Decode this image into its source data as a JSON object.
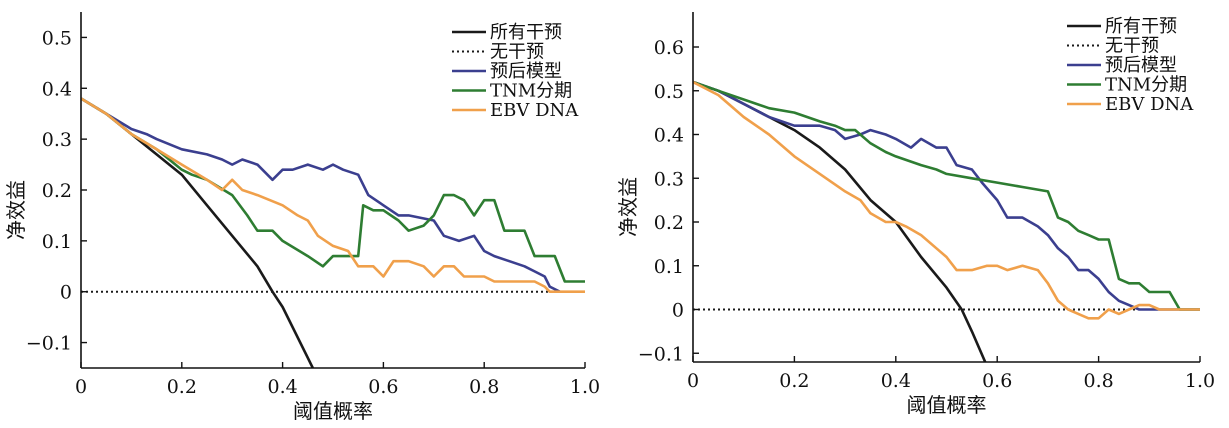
{
  "chart_data": [
    {
      "type": "line",
      "title": "",
      "xlabel": "阈值概率",
      "ylabel": "净效益",
      "xlim": [
        0,
        1.0
      ],
      "ylim": [
        -0.15,
        0.55
      ],
      "xticks": [
        0,
        0.2,
        0.4,
        0.6,
        0.8,
        1.0
      ],
      "xtick_labels": [
        "0",
        "0.2",
        "0.4",
        "0.6",
        "0.8",
        "1.0"
      ],
      "yticks": [
        -0.1,
        0,
        0.1,
        0.2,
        0.3,
        0.4,
        0.5
      ],
      "ytick_labels": [
        "−0.1",
        "0",
        "0.1",
        "0.2",
        "0.3",
        "0.4",
        "0.5"
      ],
      "grid": false,
      "legend_position": "top-right",
      "series": [
        {
          "name": "所有干预",
          "color": "#1a1a1a",
          "style": "solid",
          "x": [
            0,
            0.05,
            0.1,
            0.15,
            0.2,
            0.25,
            0.3,
            0.35,
            0.38,
            0.4,
            0.45,
            0.46
          ],
          "y": [
            0.38,
            0.35,
            0.31,
            0.27,
            0.23,
            0.17,
            0.11,
            0.05,
            0.0,
            -0.03,
            -0.13,
            -0.15
          ]
        },
        {
          "name": "无干预",
          "color": "#1a1a1a",
          "style": "dotted",
          "x": [
            0,
            1.0
          ],
          "y": [
            0,
            0
          ]
        },
        {
          "name": "预后模型",
          "color": "#3b3f8f",
          "style": "solid",
          "x": [
            0,
            0.05,
            0.1,
            0.13,
            0.15,
            0.2,
            0.25,
            0.28,
            0.3,
            0.32,
            0.35,
            0.38,
            0.4,
            0.42,
            0.45,
            0.48,
            0.5,
            0.52,
            0.55,
            0.57,
            0.6,
            0.63,
            0.65,
            0.7,
            0.72,
            0.75,
            0.78,
            0.8,
            0.82,
            0.85,
            0.88,
            0.9,
            0.92,
            0.93,
            0.95
          ],
          "y": [
            0.38,
            0.35,
            0.32,
            0.31,
            0.3,
            0.28,
            0.27,
            0.26,
            0.25,
            0.26,
            0.25,
            0.22,
            0.24,
            0.24,
            0.25,
            0.24,
            0.25,
            0.24,
            0.23,
            0.19,
            0.17,
            0.15,
            0.15,
            0.14,
            0.11,
            0.1,
            0.11,
            0.08,
            0.07,
            0.06,
            0.05,
            0.04,
            0.03,
            0.01,
            0.0
          ]
        },
        {
          "name": "TNM分期",
          "color": "#2e7d32",
          "style": "solid",
          "x": [
            0,
            0.05,
            0.1,
            0.15,
            0.2,
            0.22,
            0.25,
            0.3,
            0.33,
            0.35,
            0.38,
            0.4,
            0.45,
            0.48,
            0.5,
            0.52,
            0.55,
            0.56,
            0.58,
            0.6,
            0.63,
            0.65,
            0.68,
            0.7,
            0.72,
            0.74,
            0.76,
            0.78,
            0.8,
            0.82,
            0.84,
            0.86,
            0.88,
            0.9,
            0.92,
            0.94,
            0.96,
            0.98,
            1.0
          ],
          "y": [
            0.38,
            0.35,
            0.31,
            0.28,
            0.24,
            0.23,
            0.22,
            0.19,
            0.15,
            0.12,
            0.12,
            0.1,
            0.07,
            0.05,
            0.07,
            0.07,
            0.07,
            0.17,
            0.16,
            0.16,
            0.14,
            0.12,
            0.13,
            0.15,
            0.19,
            0.19,
            0.18,
            0.15,
            0.18,
            0.18,
            0.12,
            0.12,
            0.12,
            0.07,
            0.07,
            0.07,
            0.02,
            0.02,
            0.02
          ]
        },
        {
          "name": "EBV DNA",
          "color": "#f0a04b",
          "style": "solid",
          "x": [
            0,
            0.05,
            0.1,
            0.15,
            0.2,
            0.25,
            0.28,
            0.3,
            0.32,
            0.35,
            0.4,
            0.43,
            0.45,
            0.47,
            0.5,
            0.53,
            0.55,
            0.58,
            0.6,
            0.62,
            0.65,
            0.68,
            0.7,
            0.72,
            0.74,
            0.76,
            0.78,
            0.8,
            0.82,
            0.85,
            0.88,
            0.9,
            0.92,
            0.93,
            0.95,
            1.0
          ],
          "y": [
            0.38,
            0.35,
            0.31,
            0.28,
            0.25,
            0.22,
            0.2,
            0.22,
            0.2,
            0.19,
            0.17,
            0.15,
            0.14,
            0.11,
            0.09,
            0.08,
            0.05,
            0.05,
            0.03,
            0.06,
            0.06,
            0.05,
            0.03,
            0.05,
            0.05,
            0.03,
            0.03,
            0.03,
            0.02,
            0.02,
            0.02,
            0.02,
            0.01,
            0.0,
            0.0,
            0.0
          ]
        }
      ]
    },
    {
      "type": "line",
      "title": "",
      "xlabel": "阈值概率",
      "ylabel": "净效益",
      "xlim": [
        0,
        1.0
      ],
      "ylim": [
        -0.12,
        0.68
      ],
      "xticks": [
        0,
        0.2,
        0.4,
        0.6,
        0.8,
        1.0
      ],
      "xtick_labels": [
        "0",
        "0.2",
        "0.4",
        "0.6",
        "0.8",
        "1.0"
      ],
      "yticks": [
        -0.1,
        0,
        0.1,
        0.2,
        0.3,
        0.4,
        0.5,
        0.6
      ],
      "ytick_labels": [
        "−0.1",
        "0",
        "0.1",
        "0.2",
        "0.3",
        "0.4",
        "0.5",
        "0.6"
      ],
      "grid": false,
      "legend_position": "top-right",
      "series": [
        {
          "name": "所有干预",
          "color": "#1a1a1a",
          "style": "solid",
          "x": [
            0,
            0.05,
            0.1,
            0.15,
            0.2,
            0.25,
            0.3,
            0.35,
            0.4,
            0.45,
            0.5,
            0.53,
            0.55,
            0.58
          ],
          "y": [
            0.52,
            0.5,
            0.47,
            0.44,
            0.41,
            0.37,
            0.32,
            0.25,
            0.2,
            0.12,
            0.05,
            0.0,
            -0.05,
            -0.13
          ]
        },
        {
          "name": "无干预",
          "color": "#1a1a1a",
          "style": "dotted",
          "x": [
            0,
            1.0
          ],
          "y": [
            0,
            0
          ]
        },
        {
          "name": "预后模型",
          "color": "#3b3f8f",
          "style": "solid",
          "x": [
            0,
            0.05,
            0.1,
            0.15,
            0.2,
            0.25,
            0.28,
            0.3,
            0.33,
            0.35,
            0.38,
            0.4,
            0.43,
            0.45,
            0.48,
            0.5,
            0.52,
            0.55,
            0.57,
            0.6,
            0.62,
            0.65,
            0.68,
            0.7,
            0.72,
            0.74,
            0.76,
            0.78,
            0.8,
            0.82,
            0.84,
            0.86,
            0.88,
            0.9,
            0.92,
            0.95,
            1.0
          ],
          "y": [
            0.52,
            0.5,
            0.47,
            0.44,
            0.42,
            0.42,
            0.41,
            0.39,
            0.4,
            0.41,
            0.4,
            0.39,
            0.37,
            0.39,
            0.37,
            0.37,
            0.33,
            0.32,
            0.29,
            0.25,
            0.21,
            0.21,
            0.19,
            0.17,
            0.14,
            0.12,
            0.09,
            0.09,
            0.07,
            0.04,
            0.02,
            0.01,
            0.0,
            0.0,
            0.0,
            0.0,
            0.0
          ]
        },
        {
          "name": "TNM分期",
          "color": "#2e7d32",
          "style": "solid",
          "x": [
            0,
            0.05,
            0.1,
            0.15,
            0.2,
            0.25,
            0.28,
            0.3,
            0.32,
            0.35,
            0.38,
            0.4,
            0.45,
            0.48,
            0.5,
            0.55,
            0.6,
            0.65,
            0.7,
            0.72,
            0.74,
            0.76,
            0.78,
            0.8,
            0.82,
            0.84,
            0.86,
            0.88,
            0.9,
            0.92,
            0.94,
            0.96,
            0.98,
            1.0
          ],
          "y": [
            0.52,
            0.5,
            0.48,
            0.46,
            0.45,
            0.43,
            0.42,
            0.41,
            0.41,
            0.38,
            0.36,
            0.35,
            0.33,
            0.32,
            0.31,
            0.3,
            0.29,
            0.28,
            0.27,
            0.21,
            0.2,
            0.18,
            0.17,
            0.16,
            0.16,
            0.07,
            0.06,
            0.06,
            0.04,
            0.04,
            0.04,
            0.0,
            0.0,
            0.0
          ]
        },
        {
          "name": "EBV DNA",
          "color": "#f0a04b",
          "style": "solid",
          "x": [
            0,
            0.05,
            0.1,
            0.15,
            0.2,
            0.25,
            0.3,
            0.33,
            0.35,
            0.38,
            0.4,
            0.42,
            0.45,
            0.48,
            0.5,
            0.52,
            0.55,
            0.58,
            0.6,
            0.62,
            0.65,
            0.68,
            0.7,
            0.72,
            0.74,
            0.76,
            0.78,
            0.8,
            0.82,
            0.84,
            0.86,
            0.88,
            0.9,
            0.92,
            0.95,
            1.0
          ],
          "y": [
            0.52,
            0.49,
            0.44,
            0.4,
            0.35,
            0.31,
            0.27,
            0.25,
            0.22,
            0.2,
            0.2,
            0.19,
            0.17,
            0.14,
            0.12,
            0.09,
            0.09,
            0.1,
            0.1,
            0.09,
            0.1,
            0.09,
            0.06,
            0.02,
            0.0,
            -0.01,
            -0.02,
            -0.02,
            0.0,
            -0.01,
            0.0,
            0.01,
            0.01,
            0.0,
            0.0,
            0.0
          ]
        }
      ]
    }
  ]
}
